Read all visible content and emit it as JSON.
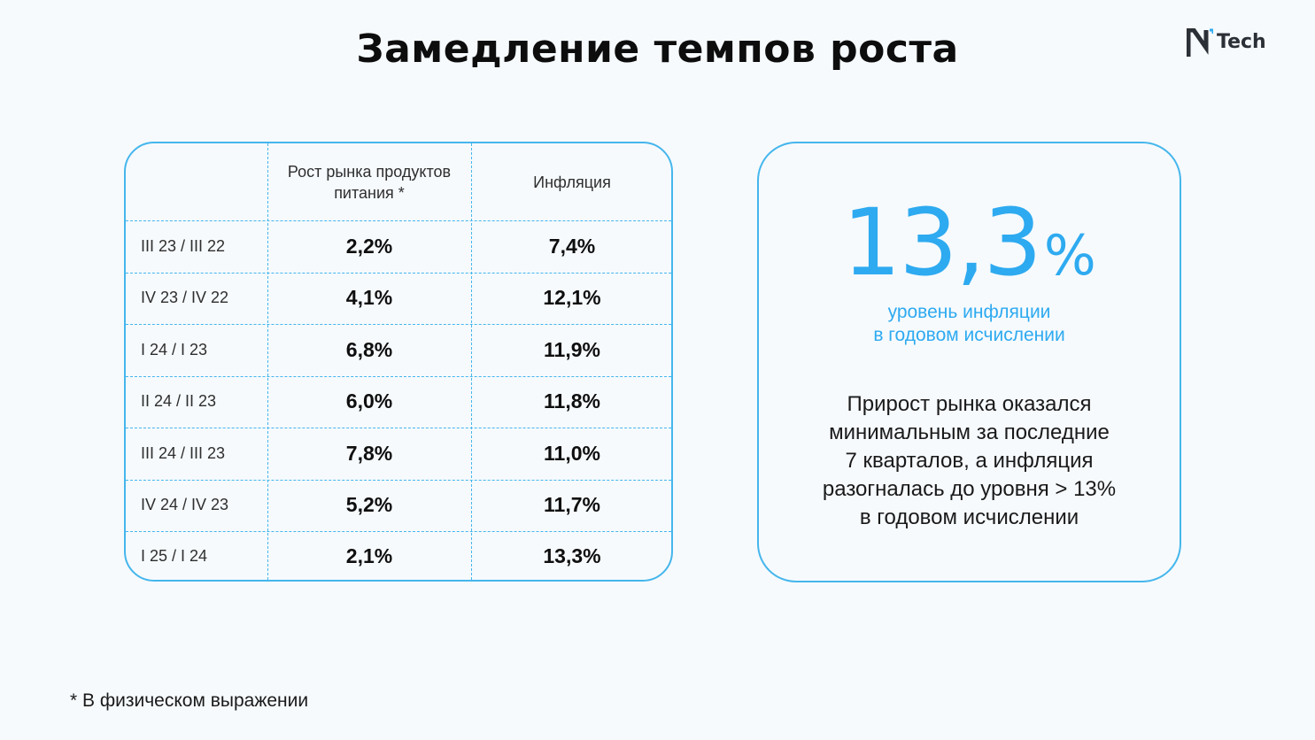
{
  "title": "Замедление темпов роста",
  "logo": {
    "mark": "n-logo-icon",
    "text": "Tech",
    "color": "#2b2f36"
  },
  "table": {
    "headers": {
      "period": "",
      "market_growth": "Рост рынка продуктов питания *",
      "inflation": "Инфляция"
    },
    "rows": [
      {
        "period": "III 23 / III 22",
        "market_growth": "2,2%",
        "inflation": "7,4%"
      },
      {
        "period": "IV 23 / IV 22",
        "market_growth": "4,1%",
        "inflation": "12,1%"
      },
      {
        "period": "I 24 / I 23",
        "market_growth": "6,8%",
        "inflation": "11,9%"
      },
      {
        "period": "II 24 / II 23",
        "market_growth": "6,0%",
        "inflation": "11,8%"
      },
      {
        "period": "III 24 / III 23",
        "market_growth": "7,8%",
        "inflation": "11,0%"
      },
      {
        "period": "IV 24 / IV 23",
        "market_growth": "5,2%",
        "inflation": "11,7%"
      },
      {
        "period": "I 25 / I 24",
        "market_growth": "2,1%",
        "inflation": "13,3%"
      }
    ]
  },
  "highlight": {
    "value": "13,3",
    "unit": "%",
    "caption_line1": "уровень инфляции",
    "caption_line2": "в годовом исчислении",
    "description": [
      "Прирост рынка оказался",
      "минимальным за последние",
      "7 кварталов, а инфляция",
      "разогналась до уровня > 13%",
      "в годовом исчислении"
    ]
  },
  "footnote": "* В физическом выражении",
  "colors": {
    "accent": "#2eaaf0",
    "border": "#45b6ec",
    "background": "#f6fafd"
  }
}
